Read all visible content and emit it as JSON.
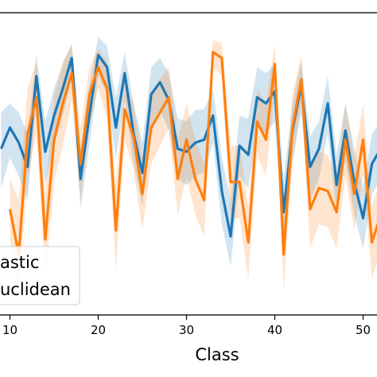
{
  "chart_data": {
    "type": "line",
    "xlabel": "Class",
    "ylabel": "",
    "xlim": [
      9,
      52
    ],
    "ylim": [
      0,
      1
    ],
    "x_ticks": [
      10,
      20,
      30,
      40,
      50
    ],
    "grid": false,
    "legend_placement": "bottom-left",
    "x": [
      9,
      10,
      11,
      12,
      13,
      14,
      15,
      16,
      17,
      18,
      19,
      20,
      21,
      22,
      23,
      24,
      25,
      26,
      27,
      28,
      29,
      30,
      31,
      32,
      33,
      34,
      35,
      36,
      37,
      38,
      39,
      40,
      41,
      42,
      43,
      44,
      45,
      46,
      47,
      48,
      49,
      50,
      51,
      52
    ],
    "series": [
      {
        "name": "astic",
        "color": "#1f77b4",
        "values": [
          0.55,
          0.62,
          0.57,
          0.49,
          0.79,
          0.54,
          0.66,
          0.75,
          0.85,
          0.45,
          0.66,
          0.86,
          0.82,
          0.62,
          0.8,
          0.6,
          0.47,
          0.73,
          0.77,
          0.71,
          0.55,
          0.54,
          0.57,
          0.58,
          0.66,
          0.41,
          0.26,
          0.56,
          0.53,
          0.72,
          0.7,
          0.74,
          0.34,
          0.61,
          0.76,
          0.49,
          0.55,
          0.7,
          0.43,
          0.61,
          0.44,
          0.32,
          0.5,
          0.55
        ],
        "band_upper": [
          0.67,
          0.7,
          0.67,
          0.6,
          0.86,
          0.64,
          0.75,
          0.83,
          0.9,
          0.55,
          0.76,
          0.92,
          0.89,
          0.72,
          0.87,
          0.7,
          0.57,
          0.82,
          0.85,
          0.8,
          0.65,
          0.64,
          0.68,
          0.68,
          0.75,
          0.52,
          0.38,
          0.66,
          0.65,
          0.82,
          0.8,
          0.83,
          0.45,
          0.7,
          0.84,
          0.59,
          0.64,
          0.79,
          0.53,
          0.7,
          0.55,
          0.42,
          0.6,
          0.64
        ],
        "band_lower": [
          0.42,
          0.52,
          0.46,
          0.38,
          0.7,
          0.43,
          0.56,
          0.66,
          0.78,
          0.35,
          0.56,
          0.79,
          0.73,
          0.52,
          0.71,
          0.5,
          0.36,
          0.63,
          0.68,
          0.61,
          0.45,
          0.43,
          0.46,
          0.47,
          0.57,
          0.3,
          0.16,
          0.46,
          0.42,
          0.62,
          0.6,
          0.64,
          0.23,
          0.51,
          0.67,
          0.38,
          0.45,
          0.6,
          0.33,
          0.51,
          0.33,
          0.22,
          0.4,
          0.45
        ]
      },
      {
        "name": "uclidean",
        "color": "#ff7f0e",
        "values": [
          null,
          0.35,
          0.2,
          0.6,
          0.72,
          0.25,
          0.58,
          0.7,
          0.8,
          0.5,
          0.73,
          0.82,
          0.75,
          0.28,
          0.68,
          0.59,
          0.4,
          0.62,
          0.67,
          0.72,
          0.45,
          0.58,
          0.45,
          0.38,
          0.87,
          0.85,
          0.44,
          0.44,
          0.24,
          0.64,
          0.58,
          0.83,
          0.2,
          0.62,
          0.78,
          0.35,
          0.42,
          0.41,
          0.34,
          0.58,
          0.4,
          0.58,
          0.24,
          0.33
        ],
        "band_upper": [
          null,
          0.45,
          0.38,
          0.75,
          0.84,
          0.4,
          0.72,
          0.84,
          0.89,
          0.62,
          0.82,
          0.88,
          0.84,
          0.42,
          0.78,
          0.7,
          0.52,
          0.74,
          0.78,
          0.82,
          0.58,
          0.7,
          0.58,
          0.5,
          0.91,
          0.9,
          0.56,
          0.56,
          0.36,
          0.75,
          0.7,
          0.9,
          0.32,
          0.73,
          0.86,
          0.48,
          0.54,
          0.53,
          0.46,
          0.7,
          0.52,
          0.7,
          0.36,
          0.45
        ],
        "band_lower": [
          null,
          0.25,
          0.08,
          0.45,
          0.6,
          0.12,
          0.44,
          0.56,
          0.71,
          0.38,
          0.62,
          0.75,
          0.65,
          0.15,
          0.58,
          0.48,
          0.28,
          0.5,
          0.56,
          0.62,
          0.33,
          0.46,
          0.33,
          0.26,
          0.82,
          0.79,
          0.32,
          0.32,
          0.12,
          0.53,
          0.46,
          0.75,
          0.08,
          0.5,
          0.7,
          0.22,
          0.3,
          0.29,
          0.22,
          0.46,
          0.28,
          0.46,
          0.12,
          0.21
        ]
      }
    ]
  }
}
